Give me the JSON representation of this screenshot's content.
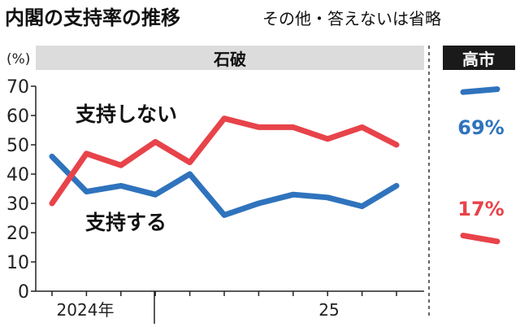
{
  "title": "内閣の支持率の推移",
  "subtitle": "その他・答えないは省略",
  "unit_label": "(%)",
  "colors": {
    "support": "#2f73bd",
    "nonsupport": "#e8434a",
    "band": "#dcdcdc",
    "takaichi_band": "#1a1a1a",
    "axis": "#222222"
  },
  "chart_data": {
    "type": "line",
    "title": "内閣の支持率の推移",
    "subtitle": "その他・答えないは省略",
    "ylabel": "(%)",
    "ylim": [
      0,
      70
    ],
    "yticks": [
      0,
      10,
      20,
      30,
      40,
      50,
      60,
      70
    ],
    "grid": false,
    "x_tick_labels": [
      {
        "label": "2024年",
        "segment": "2024"
      },
      {
        "label": "25",
        "segment": "2025"
      }
    ],
    "cabinets": [
      {
        "name": "石破",
        "series": [
          {
            "name": "支持する",
            "color": "#2f73bd",
            "values": [
              46,
              34,
              36,
              33,
              40,
              26,
              30,
              33,
              32,
              29,
              36
            ]
          },
          {
            "name": "支持しない",
            "color": "#e8434a",
            "values": [
              30,
              47,
              43,
              51,
              44,
              59,
              56,
              56,
              52,
              56,
              50
            ]
          }
        ]
      },
      {
        "name": "高市",
        "series": [
          {
            "name": "支持する",
            "color": "#2f73bd",
            "values": [
              68,
              69
            ],
            "end_label": "69%"
          },
          {
            "name": "支持しない",
            "color": "#e8434a",
            "values": [
              19,
              17
            ],
            "end_label": "17%"
          }
        ]
      }
    ]
  }
}
